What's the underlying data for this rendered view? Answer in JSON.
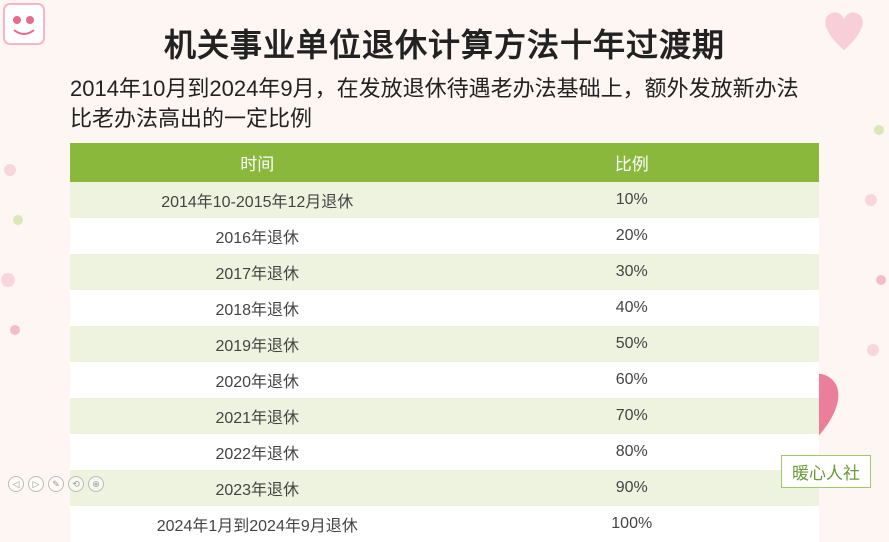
{
  "title": "机关事业单位退休计算方法十年过渡期",
  "subtitle": "2014年10月到2024年9月，在发放退休待遇老办法基础上，额外发放新办法比老办法高出的一定比例",
  "table": {
    "columns": [
      "时间",
      "比例"
    ],
    "rows": [
      [
        "2014年10-2015年12月退休",
        "10%"
      ],
      [
        "2016年退休",
        "20%"
      ],
      [
        "2017年退休",
        "30%"
      ],
      [
        "2018年退休",
        "40%"
      ],
      [
        "2019年退休",
        "50%"
      ],
      [
        "2020年退休",
        "60%"
      ],
      [
        "2021年退休",
        "70%"
      ],
      [
        "2022年退休",
        "80%"
      ],
      [
        "2023年退休",
        "90%"
      ],
      [
        "2024年1月到2024年9月退休",
        "100%"
      ]
    ],
    "header_bg": "#8ab83c",
    "header_color": "#ffffff",
    "row_odd_bg": "#eef3df",
    "row_even_bg": "#ffffff",
    "cell_color": "#444444",
    "header_fontsize": 17,
    "cell_fontsize": 16
  },
  "watermark": "暖心人社",
  "styling": {
    "page_bg": "#fdf6f2",
    "title_fontsize": 32,
    "title_color": "#222222",
    "subtitle_fontsize": 22,
    "subtitle_color": "#222222",
    "watermark_border": "#9ec96b",
    "watermark_color": "#6a9a3a",
    "deco_heart_color": "#e86a8a",
    "deco_accent_pink": "#f5b6c8",
    "deco_accent_green": "#b8d87a"
  },
  "nav_glyphs": [
    "◁",
    "▷",
    "✎",
    "⟲",
    "⊕"
  ]
}
